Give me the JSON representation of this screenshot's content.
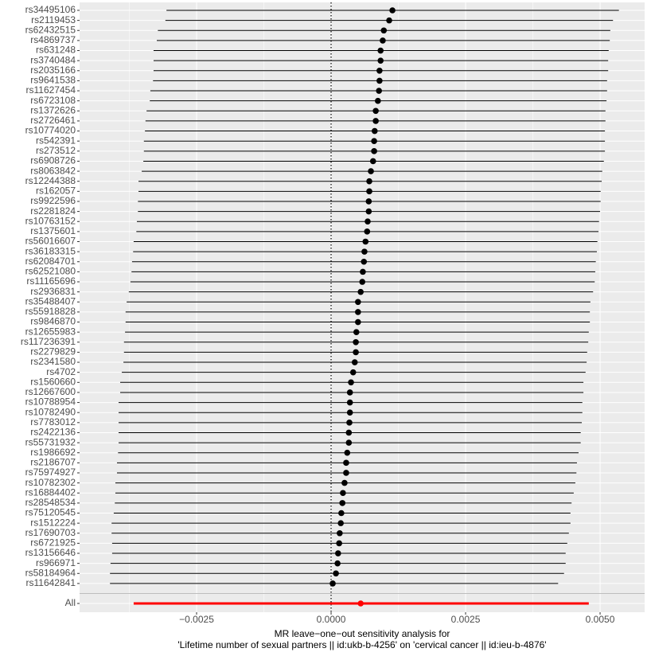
{
  "chart_data": {
    "type": "forest",
    "categories": [
      "rs34495106",
      "rs2119453",
      "rs62432515",
      "rs4869737",
      "rs631248",
      "rs3740484",
      "rs2035166",
      "rs9641538",
      "rs11627454",
      "rs6723108",
      "rs1372626",
      "rs2726461",
      "rs10774020",
      "rs542391",
      "rs273512",
      "rs6908726",
      "rs8063842",
      "rs12244388",
      "rs162057",
      "rs9922596",
      "rs2281824",
      "rs10763152",
      "rs1375601",
      "rs56016607",
      "rs36183315",
      "rs62084701",
      "rs62521080",
      "rs11165696",
      "rs2936831",
      "rs35488407",
      "rs55918828",
      "rs9846870",
      "rs12655983",
      "rs117236391",
      "rs2279829",
      "rs2341580",
      "rs4702",
      "rs1560660",
      "rs12667600",
      "rs10788954",
      "rs10782490",
      "rs7783012",
      "rs2422136",
      "rs55731932",
      "rs1986692",
      "rs2186707",
      "rs75974927",
      "rs10782302",
      "rs16884402",
      "rs28548534",
      "rs75120545",
      "rs1512224",
      "rs17690703",
      "rs6721925",
      "rs13156646",
      "rs966971",
      "rs58184964",
      "rs11642841",
      "All"
    ],
    "values": [
      0.00114,
      0.00108,
      0.00098,
      0.00096,
      0.00092,
      0.00092,
      0.0009,
      0.0009,
      0.00089,
      0.00087,
      0.00083,
      0.00083,
      0.00081,
      0.0008,
      0.0008,
      0.00078,
      0.00074,
      0.00071,
      0.00071,
      0.0007,
      0.0007,
      0.00068,
      0.00067,
      0.00064,
      0.00062,
      0.00061,
      0.00059,
      0.00058,
      0.00055,
      0.0005,
      0.0005,
      0.0005,
      0.00047,
      0.00046,
      0.00046,
      0.00044,
      0.00041,
      0.00037,
      0.00035,
      0.00035,
      0.00035,
      0.00034,
      0.00033,
      0.00033,
      0.0003,
      0.00028,
      0.00028,
      0.00025,
      0.00022,
      0.00021,
      0.00019,
      0.00018,
      0.00016,
      0.00015,
      0.00013,
      0.00012,
      9e-05,
      3e-05,
      0.00055
    ],
    "lower": [
      -0.00306,
      -0.00308,
      -0.00322,
      -0.00324,
      -0.0033,
      -0.0033,
      -0.0033,
      -0.00331,
      -0.00336,
      -0.00337,
      -0.00343,
      -0.00345,
      -0.00346,
      -0.00348,
      -0.00348,
      -0.00349,
      -0.00352,
      -0.00358,
      -0.00358,
      -0.00359,
      -0.00359,
      -0.00361,
      -0.00362,
      -0.00367,
      -0.00368,
      -0.0037,
      -0.00371,
      -0.00373,
      -0.00376,
      -0.0038,
      -0.00382,
      -0.00382,
      -0.00383,
      -0.00385,
      -0.00385,
      -0.00386,
      -0.00389,
      -0.00392,
      -0.00392,
      -0.00395,
      -0.00395,
      -0.00395,
      -0.00395,
      -0.00395,
      -0.00396,
      -0.00398,
      -0.00398,
      -0.00401,
      -0.00401,
      -0.00402,
      -0.00404,
      -0.00408,
      -0.00408,
      -0.00407,
      -0.00407,
      -0.0041,
      -0.00411,
      -0.00411,
      -0.00367
    ],
    "upper": [
      0.00535,
      0.00524,
      0.00519,
      0.00518,
      0.00516,
      0.00515,
      0.00515,
      0.00513,
      0.00513,
      0.00512,
      0.0051,
      0.0051,
      0.00509,
      0.00509,
      0.00509,
      0.00507,
      0.00504,
      0.00503,
      0.00501,
      0.00501,
      0.005,
      0.00498,
      0.00497,
      0.00495,
      0.00494,
      0.00492,
      0.00491,
      0.0049,
      0.00487,
      0.00482,
      0.00481,
      0.00481,
      0.00479,
      0.00478,
      0.00476,
      0.00475,
      0.00473,
      0.00469,
      0.00469,
      0.00467,
      0.00467,
      0.00466,
      0.00464,
      0.00464,
      0.0046,
      0.00457,
      0.00456,
      0.00454,
      0.00451,
      0.00447,
      0.00445,
      0.00445,
      0.00442,
      0.00439,
      0.00436,
      0.00436,
      0.00433,
      0.00422,
      0.00479
    ],
    "color": "#000000",
    "summary_color": "#ff0000",
    "reference_line": 0,
    "xlim": [
      -0.004675,
      0.005828
    ],
    "xticks": [
      {
        "value": -0.0025,
        "label": "−0.0025"
      },
      {
        "value": 0,
        "label": "0.0000"
      },
      {
        "value": 0.0025,
        "label": "0.0025"
      },
      {
        "value": 0.005,
        "label": "0.0050"
      }
    ],
    "xlabel": [
      "MR leave−one−out sensitivity analysis for",
      "'Lifetime number of sexual partners || id:ukb-b-4256' on 'cervical cancer || id:ieu-b-4876'"
    ],
    "grid": true
  }
}
